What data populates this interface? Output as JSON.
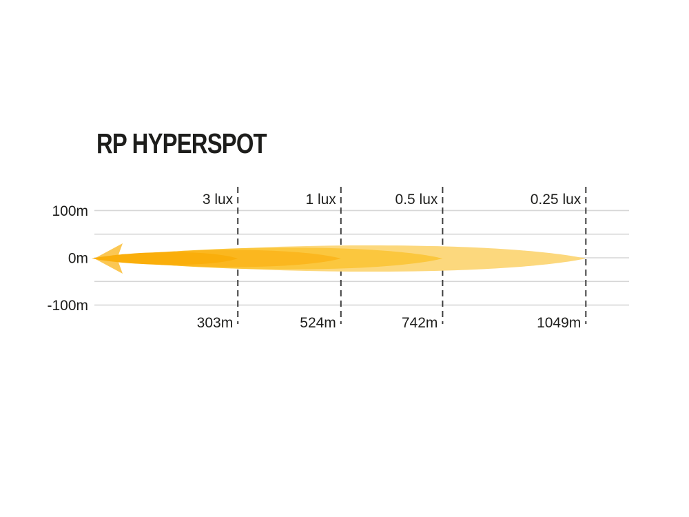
{
  "page": {
    "background": "#ffffff"
  },
  "header": {
    "title": "RP HYPERSPOT"
  },
  "chart_data": {
    "type": "area",
    "subtype": "photometric-beam-distance-diagram",
    "title": "RP HYPERSPOT",
    "x_unit": "m",
    "y_unit": "m",
    "xlim": [
      0,
      1142
    ],
    "ylim": [
      -145,
      145
    ],
    "grid": true,
    "y_gridlines": [
      100,
      50,
      0,
      -50,
      -100
    ],
    "y_axis_labels": [
      {
        "value": 100,
        "label": "100m"
      },
      {
        "value": 0,
        "label": "0m"
      },
      {
        "value": -100,
        "label": "-100m"
      }
    ],
    "zones": [
      {
        "lux_label": "3 lux",
        "distance_label": "303m",
        "distance_m": 303,
        "beam_half_width_m": 14,
        "color": "#faae0b"
      },
      {
        "lux_label": "1 lux",
        "distance_label": "524m",
        "distance_m": 524,
        "beam_half_width_m": 19,
        "color": "#fbb71f"
      },
      {
        "lux_label": "0.5 lux",
        "distance_label": "742m",
        "distance_m": 742,
        "beam_half_width_m": 24,
        "color": "#fbc73e"
      },
      {
        "lux_label": "0.25 lux",
        "distance_label": "1049m",
        "distance_m": 1049,
        "beam_half_width_m": 29,
        "color": "#fcd87d"
      }
    ],
    "beam_source_arrow_color": "#fbc753",
    "colors": {
      "text": "#1d1d1b",
      "gridline": "#d6d6d6",
      "threshold_line": "#3d3d3d",
      "background": "#ffffff"
    }
  }
}
